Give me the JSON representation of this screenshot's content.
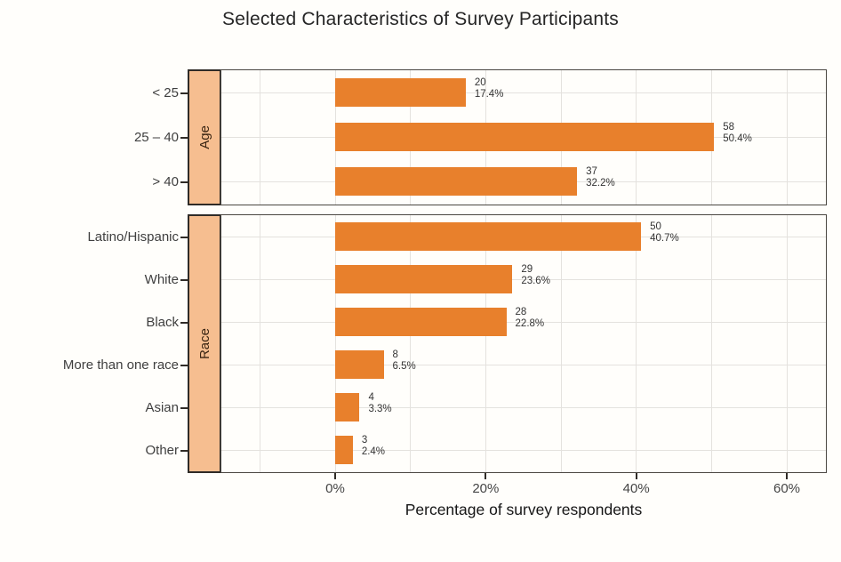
{
  "title": "Selected Characteristics of Survey Participants",
  "xaxis": {
    "label": "Percentage of survey respondents",
    "tick_labels": [
      "0%",
      "20%",
      "40%",
      "60%"
    ],
    "tick_values": [
      0,
      20,
      40,
      60
    ],
    "minor_gridline_values": [
      -10,
      10,
      30,
      50
    ]
  },
  "chart_data": {
    "type": "bar",
    "orientation": "horizontal",
    "title": "Selected Characteristics of Survey Participants",
    "xlabel": "Percentage of survey respondents",
    "xlim": [
      -15.5,
      65.5
    ],
    "grid": "on",
    "legend": "none",
    "facets": [
      {
        "label": "Age",
        "categories": [
          "< 25",
          "25 – 40",
          "> 40"
        ],
        "counts": [
          20,
          58,
          37
        ],
        "percents": [
          17.4,
          50.4,
          32.2
        ]
      },
      {
        "label": "Race",
        "categories": [
          "Latino/Hispanic",
          "White",
          "Black",
          "More than one race",
          "Asian",
          "Other"
        ],
        "counts": [
          50,
          29,
          28,
          8,
          4,
          3
        ],
        "percents": [
          40.7,
          23.6,
          22.8,
          6.5,
          3.3,
          2.4
        ]
      }
    ],
    "bar_label_format": "count over percent"
  },
  "colors": {
    "bar": "#E8802C",
    "strip_background": "#F6BE90",
    "strip_border": "#2F2B27",
    "panel_border": "#4A4641",
    "gridline": "#E4E2DE",
    "background": "#FFFEFB",
    "text": "#333333"
  }
}
